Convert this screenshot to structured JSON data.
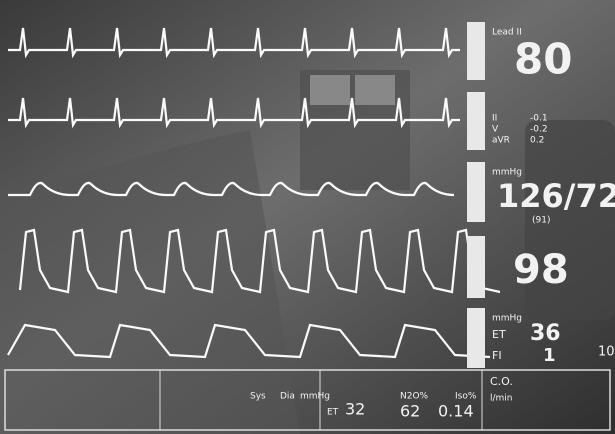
{
  "monitor": {
    "lead": "Lead II",
    "heart_rate": "80",
    "st": [
      {
        "label": "II",
        "value": "-0.1"
      },
      {
        "label": "V",
        "value": "-0.2"
      },
      {
        "label": "aVR",
        "value": "0.2"
      }
    ],
    "bp_unit": "mmHg",
    "bp": "126/72",
    "bp_mean": "(91)",
    "spo2": "98",
    "co2_unit": "mmHg",
    "co2": [
      {
        "label": "ET",
        "value": "36"
      },
      {
        "label": "FI",
        "value": "1"
      }
    ],
    "side_value": "10"
  },
  "bottom_bar": {
    "nibp": [
      "Sys",
      "Dia",
      "mmHg"
    ],
    "gas_label": "ET",
    "gas_values": [
      "32",
      "62",
      "0.14"
    ],
    "gas_units": [
      "N2O%",
      "Iso%"
    ],
    "co_label": "C.O.",
    "co_unit": "l/min"
  }
}
